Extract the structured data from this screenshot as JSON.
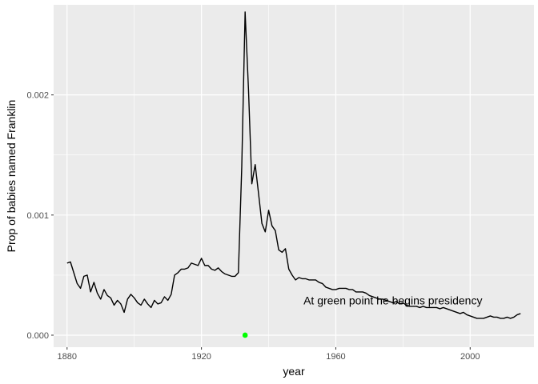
{
  "chart_data": {
    "type": "line",
    "xlabel": "year",
    "ylabel": "Prop of babies named Franklin",
    "xlim": [
      1876,
      2019
    ],
    "ylim": [
      -0.0001,
      0.00275
    ],
    "x_ticks": [
      1880,
      1920,
      1960,
      2000
    ],
    "x_tick_labels": [
      "1880",
      "1920",
      "1960",
      "2000"
    ],
    "y_ticks": [
      0.0,
      0.001,
      0.002
    ],
    "y_tick_labels": [
      "0.000",
      "0.001",
      "0.002"
    ],
    "grid": true,
    "background": "#ebebeb",
    "grid_color": "#ffffff",
    "line_color": "#000000",
    "highlight_color": "#00ff00",
    "annotation": {
      "text": "At green point he begins presidency",
      "x": 1977,
      "y": 0.00029
    },
    "highlight_point": {
      "x": 1933,
      "y": 0.0
    },
    "series": [
      {
        "x": [
          1880,
          1881,
          1882,
          1883,
          1884,
          1885,
          1886,
          1887,
          1888,
          1889,
          1890,
          1891,
          1892,
          1893,
          1894,
          1895,
          1896,
          1897,
          1898,
          1899,
          1900,
          1901,
          1902,
          1903,
          1904,
          1905,
          1906,
          1907,
          1908,
          1909,
          1910,
          1911,
          1912,
          1913,
          1914,
          1915,
          1916,
          1917,
          1918,
          1919,
          1920,
          1921,
          1922,
          1923,
          1924,
          1925,
          1926,
          1927,
          1928,
          1929,
          1930,
          1931,
          1932,
          1933,
          1934,
          1935,
          1936,
          1937,
          1938,
          1939,
          1940,
          1941,
          1942,
          1943,
          1944,
          1945,
          1946,
          1947,
          1948,
          1949,
          1950,
          1951,
          1952,
          1953,
          1954,
          1955,
          1956,
          1957,
          1958,
          1959,
          1960,
          1961,
          1962,
          1963,
          1964,
          1965,
          1966,
          1967,
          1968,
          1969,
          1970,
          1971,
          1972,
          1973,
          1974,
          1975,
          1976,
          1977,
          1978,
          1979,
          1980,
          1981,
          1982,
          1983,
          1984,
          1985,
          1986,
          1987,
          1988,
          1989,
          1990,
          1991,
          1992,
          1993,
          1994,
          1995,
          1996,
          1997,
          1998,
          1999,
          2000,
          2001,
          2002,
          2003,
          2004,
          2005,
          2006,
          2007,
          2008,
          2009,
          2010,
          2011,
          2012,
          2013,
          2014,
          2015
        ],
        "y": [
          0.0006,
          0.00061,
          0.00052,
          0.00043,
          0.00039,
          0.00049,
          0.0005,
          0.00036,
          0.00044,
          0.00035,
          0.0003,
          0.00038,
          0.00033,
          0.00031,
          0.00025,
          0.00029,
          0.00026,
          0.00019,
          0.0003,
          0.00034,
          0.00031,
          0.00027,
          0.00025,
          0.0003,
          0.00026,
          0.00023,
          0.00029,
          0.00026,
          0.00027,
          0.00032,
          0.00029,
          0.00034,
          0.0005,
          0.00052,
          0.00055,
          0.00055,
          0.00056,
          0.0006,
          0.00059,
          0.00058,
          0.00064,
          0.00058,
          0.00058,
          0.00055,
          0.00054,
          0.00056,
          0.00053,
          0.00051,
          0.0005,
          0.00049,
          0.00049,
          0.00052,
          0.0014,
          0.00269,
          0.00205,
          0.00126,
          0.00142,
          0.00118,
          0.00093,
          0.00086,
          0.00104,
          0.00091,
          0.00087,
          0.00071,
          0.00069,
          0.00072,
          0.00055,
          0.0005,
          0.00046,
          0.00048,
          0.00047,
          0.00047,
          0.00046,
          0.00046,
          0.00046,
          0.00044,
          0.00043,
          0.0004,
          0.00039,
          0.00038,
          0.00038,
          0.00039,
          0.00039,
          0.00039,
          0.00038,
          0.00038,
          0.00036,
          0.00036,
          0.00036,
          0.00035,
          0.00033,
          0.00032,
          0.00031,
          0.0003,
          0.0003,
          0.00029,
          0.00028,
          0.00027,
          0.00028,
          0.00026,
          0.00027,
          0.00025,
          0.00024,
          0.00024,
          0.00024,
          0.00023,
          0.00024,
          0.00023,
          0.00023,
          0.00023,
          0.00023,
          0.00022,
          0.00023,
          0.00022,
          0.00021,
          0.0002,
          0.00019,
          0.00018,
          0.00019,
          0.00017,
          0.00016,
          0.00015,
          0.00014,
          0.00014,
          0.00014,
          0.00015,
          0.00016,
          0.00015,
          0.00015,
          0.00014,
          0.00014,
          0.00015,
          0.00014,
          0.00015,
          0.00017,
          0.00018
        ]
      }
    ]
  }
}
